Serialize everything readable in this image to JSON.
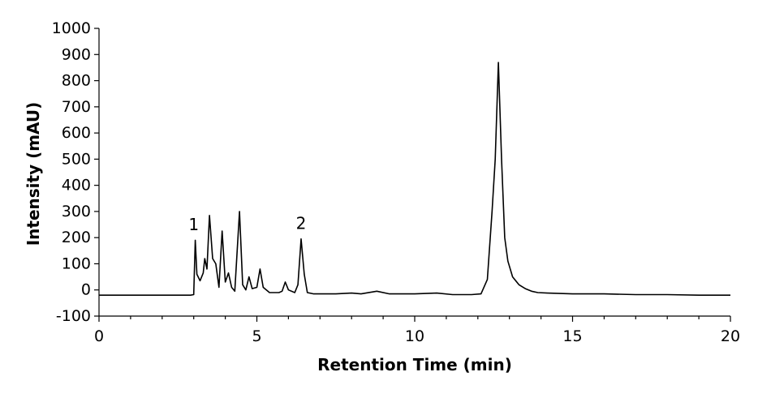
{
  "chart_data": {
    "type": "line",
    "title": "",
    "xlabel": "Retention Time (min)",
    "ylabel": "Intensity (mAU)",
    "xlim": [
      0,
      20
    ],
    "ylim": [
      -100,
      1000
    ],
    "x_ticks": [
      0,
      5,
      10,
      15,
      20
    ],
    "x_minor_step": 1,
    "y_ticks": [
      -100,
      0,
      100,
      200,
      300,
      400,
      500,
      600,
      700,
      800,
      900,
      1000
    ],
    "grid": false,
    "legend": "none",
    "annotations": [
      {
        "text": "1",
        "x": 3.0,
        "y": 250
      },
      {
        "text": "2",
        "x": 6.4,
        "y": 255
      }
    ],
    "series": [
      {
        "color": "#000000",
        "baseline": -20,
        "points": [
          [
            0.0,
            -20
          ],
          [
            2.9,
            -20
          ],
          [
            3.0,
            -18
          ],
          [
            3.05,
            190
          ],
          [
            3.1,
            60
          ],
          [
            3.2,
            35
          ],
          [
            3.3,
            65
          ],
          [
            3.35,
            120
          ],
          [
            3.42,
            80
          ],
          [
            3.5,
            285
          ],
          [
            3.6,
            120
          ],
          [
            3.7,
            100
          ],
          [
            3.8,
            10
          ],
          [
            3.9,
            225
          ],
          [
            4.0,
            30
          ],
          [
            4.1,
            65
          ],
          [
            4.2,
            10
          ],
          [
            4.3,
            -5
          ],
          [
            4.45,
            300
          ],
          [
            4.55,
            20
          ],
          [
            4.65,
            0
          ],
          [
            4.75,
            50
          ],
          [
            4.85,
            5
          ],
          [
            5.0,
            10
          ],
          [
            5.1,
            80
          ],
          [
            5.2,
            10
          ],
          [
            5.4,
            -10
          ],
          [
            5.7,
            -10
          ],
          [
            5.8,
            -5
          ],
          [
            5.9,
            30
          ],
          [
            6.0,
            0
          ],
          [
            6.2,
            -10
          ],
          [
            6.3,
            20
          ],
          [
            6.4,
            195
          ],
          [
            6.5,
            60
          ],
          [
            6.6,
            -10
          ],
          [
            6.8,
            -15
          ],
          [
            7.5,
            -15
          ],
          [
            8.0,
            -12
          ],
          [
            8.3,
            -15
          ],
          [
            8.8,
            -5
          ],
          [
            9.2,
            -15
          ],
          [
            10.0,
            -15
          ],
          [
            10.7,
            -12
          ],
          [
            11.2,
            -18
          ],
          [
            11.8,
            -18
          ],
          [
            12.1,
            -15
          ],
          [
            12.3,
            40
          ],
          [
            12.45,
            300
          ],
          [
            12.55,
            500
          ],
          [
            12.65,
            870
          ],
          [
            12.75,
            500
          ],
          [
            12.85,
            200
          ],
          [
            12.95,
            110
          ],
          [
            13.1,
            50
          ],
          [
            13.3,
            20
          ],
          [
            13.5,
            5
          ],
          [
            13.7,
            -5
          ],
          [
            13.9,
            -10
          ],
          [
            14.2,
            -12
          ],
          [
            15.0,
            -15
          ],
          [
            16.0,
            -15
          ],
          [
            17.0,
            -18
          ],
          [
            18.0,
            -18
          ],
          [
            19.0,
            -20
          ],
          [
            20.0,
            -20
          ]
        ]
      }
    ]
  }
}
